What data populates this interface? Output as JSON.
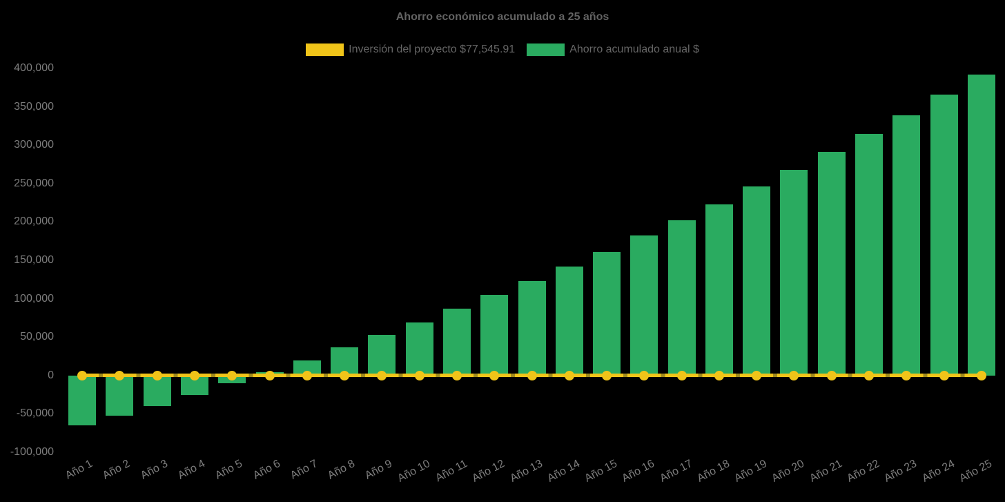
{
  "title": "Ahorro económico acumulado a 25 años",
  "colors": {
    "background": "#000000",
    "bar": "#2aab60",
    "line": "#f0c419",
    "line_tick_dash": "#a08a1c",
    "title_text": "#636363",
    "legend_text": "#666666",
    "tick_text": "#7d7d7d"
  },
  "legend": {
    "position": "top",
    "items": [
      {
        "label": "Inversión del proyecto $77,545.91",
        "color": "#f0c419"
      },
      {
        "label": "Ahorro acumulado anual $",
        "color": "#2aab60"
      }
    ]
  },
  "chart_data": {
    "type": "bar",
    "title": "Ahorro económico acumulado a 25 años",
    "xlabel": "",
    "ylabel": "",
    "ylim": [
      -100000,
      400000
    ],
    "ytick_step": 50000,
    "grid": false,
    "legend_position": "top",
    "x_label_rotation_deg": -28,
    "categories": [
      "Año 1",
      "Año 2",
      "Año 3",
      "Año 4",
      "Año 5",
      "Año 6",
      "Año 7",
      "Año 8",
      "Año 9",
      "Año 10",
      "Año 11",
      "Año 12",
      "Año 13",
      "Año 14",
      "Año 15",
      "Año 16",
      "Año 17",
      "Año 18",
      "Año 19",
      "Año 20",
      "Año 21",
      "Año 22",
      "Año 23",
      "Año 24",
      "Año 25"
    ],
    "series": [
      {
        "name": "Inversión del proyecto $77,545.91",
        "type": "line",
        "color": "#f0c419",
        "values": [
          0,
          0,
          0,
          0,
          0,
          0,
          0,
          0,
          0,
          0,
          0,
          0,
          0,
          0,
          0,
          0,
          0,
          0,
          0,
          0,
          0,
          0,
          0,
          0,
          0
        ]
      },
      {
        "name": "Ahorro acumulado anual $",
        "type": "bar",
        "color": "#2aab60",
        "values": [
          -65000,
          -52000,
          -40000,
          -25000,
          -10000,
          4500,
          20000,
          37000,
          53000,
          69500,
          87000,
          105000,
          123000,
          142000,
          161000,
          182000,
          202000,
          223000,
          246000,
          268000,
          291000,
          315000,
          339000,
          366000,
          392000
        ]
      }
    ]
  }
}
